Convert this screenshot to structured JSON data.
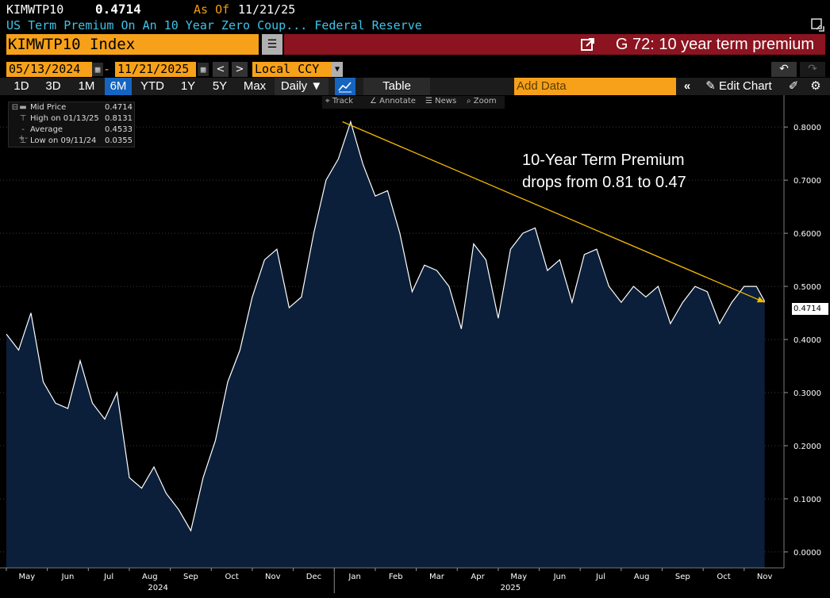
{
  "header": {
    "ticker": "KIMWTP10",
    "price": "0.4714",
    "as_of_label": "As Of",
    "as_of_date": "11/21/25",
    "description": "US Term Premium On An 10 Year Zero Coup...  Federal Reserve",
    "security": "KIMWTP10 Index",
    "function_title": "G 72: 10 year term premium"
  },
  "controls": {
    "start_date": "05/13/2024",
    "end_date": "11/21/2025",
    "dash": "-",
    "currency": "Local CCY",
    "periods": [
      "1D",
      "3D",
      "1M",
      "6M",
      "YTD",
      "1Y",
      "5Y",
      "Max"
    ],
    "selected_period": "6M",
    "frequency": "Daily ▼",
    "table_label": "Table",
    "add_data_placeholder": "Add Data",
    "edit_chart_label": "Edit Chart"
  },
  "chart_tools": [
    "Track",
    "Annotate",
    "News",
    "Zoom"
  ],
  "legend": [
    {
      "label": "Mid Price",
      "value": "0.4714",
      "icon": "line"
    },
    {
      "label": "High on 01/13/25",
      "value": "0.8131",
      "icon": "high"
    },
    {
      "label": "Average",
      "value": "0.4533",
      "icon": "avg"
    },
    {
      "label": "Low on 09/11/24",
      "value": "0.0355",
      "icon": "low"
    }
  ],
  "annotation": {
    "line1": "10-Year Term Premium",
    "line2": "drops from 0.81 to 0.47"
  },
  "last_value_badge": "0.4714",
  "colors": {
    "accent_orange": "#f7a11a",
    "title_red": "#8b1420",
    "area_fill": "#0b1f3a",
    "line": "#ffffff",
    "trend_line": "#f5b800",
    "desc_cyan": "#3fc3e8"
  },
  "chart_data": {
    "type": "area",
    "title": "10 year term premium",
    "series_name": "KIMWTP10 Index Mid Price",
    "ylim": [
      -0.03,
      0.86
    ],
    "yticks": [
      0.0,
      0.1,
      0.2,
      0.3,
      0.4,
      0.5,
      0.6,
      0.7,
      0.8
    ],
    "ytick_labels": [
      "0.0000",
      "0.1000",
      "0.2000",
      "0.3000",
      "0.4000",
      "0.5000",
      "0.6000",
      "0.7000",
      "0.8000"
    ],
    "xlim": [
      0,
      18.7
    ],
    "x_month_labels": [
      "May",
      "Jun",
      "Jul",
      "Aug",
      "Sep",
      "Oct",
      "Nov",
      "Dec",
      "Jan",
      "Feb",
      "Mar",
      "Apr",
      "May",
      "Jun",
      "Jul",
      "Aug",
      "Sep",
      "Oct",
      "Nov"
    ],
    "x_year_labels": [
      {
        "label": "2024",
        "at": 3.7
      },
      {
        "label": "2025",
        "at": 12.3
      }
    ],
    "x": [
      0.0,
      0.3,
      0.6,
      0.9,
      1.2,
      1.5,
      1.8,
      2.1,
      2.4,
      2.7,
      3.0,
      3.3,
      3.6,
      3.9,
      4.2,
      4.5,
      4.8,
      5.1,
      5.4,
      5.7,
      6.0,
      6.3,
      6.6,
      6.9,
      7.2,
      7.5,
      7.8,
      8.1,
      8.4,
      8.7,
      9.0,
      9.3,
      9.6,
      9.9,
      10.2,
      10.5,
      10.8,
      11.1,
      11.4,
      11.7,
      12.0,
      12.3,
      12.6,
      12.9,
      13.2,
      13.5,
      13.8,
      14.1,
      14.4,
      14.7,
      15.0,
      15.3,
      15.6,
      15.9,
      16.2,
      16.5,
      16.8,
      17.1,
      17.4,
      17.7,
      18.0,
      18.3,
      18.5
    ],
    "y": [
      0.41,
      0.38,
      0.45,
      0.32,
      0.28,
      0.27,
      0.36,
      0.28,
      0.25,
      0.3,
      0.14,
      0.12,
      0.16,
      0.11,
      0.08,
      0.04,
      0.14,
      0.21,
      0.32,
      0.38,
      0.48,
      0.55,
      0.57,
      0.46,
      0.48,
      0.6,
      0.7,
      0.74,
      0.81,
      0.73,
      0.67,
      0.68,
      0.6,
      0.49,
      0.54,
      0.53,
      0.5,
      0.42,
      0.58,
      0.55,
      0.44,
      0.57,
      0.6,
      0.61,
      0.53,
      0.55,
      0.47,
      0.56,
      0.57,
      0.5,
      0.47,
      0.5,
      0.48,
      0.5,
      0.43,
      0.47,
      0.5,
      0.49,
      0.43,
      0.47,
      0.5,
      0.5,
      0.4714
    ],
    "trend_line": {
      "x": [
        8.2,
        18.5
      ],
      "y": [
        0.81,
        0.47
      ]
    }
  }
}
